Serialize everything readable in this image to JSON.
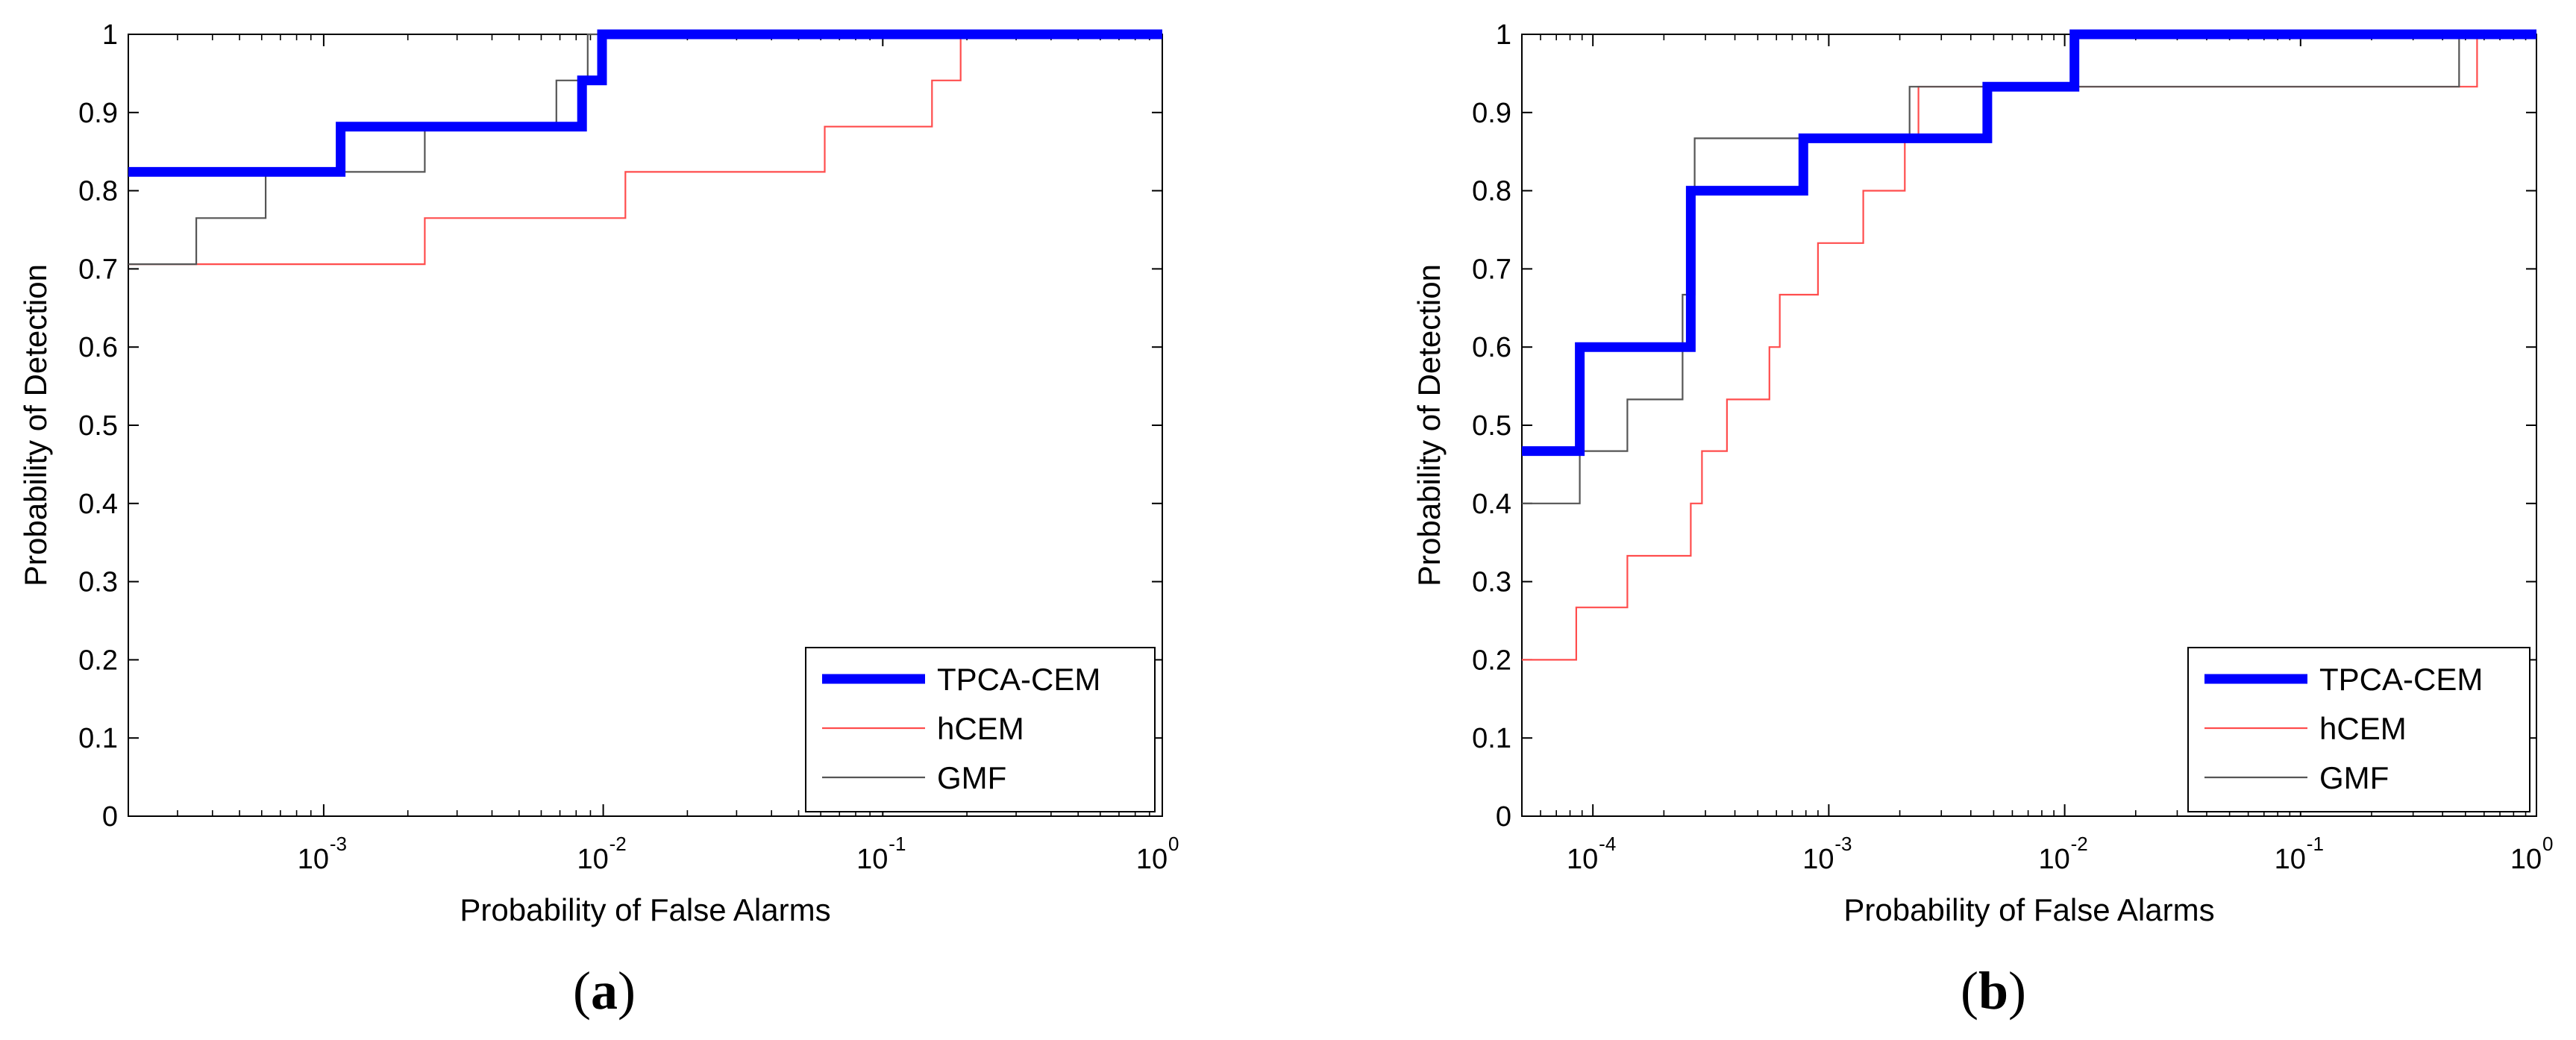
{
  "chart_data": [
    {
      "type": "line",
      "panel_label": "a",
      "xlabel": "Probability of False Alarms",
      "ylabel": "Probability of Detection",
      "xscale": "log",
      "xlim": [
        0.0002,
        1
      ],
      "ylim": [
        0,
        1
      ],
      "x_ticks": [
        0.001,
        0.01,
        0.1,
        1
      ],
      "x_tick_labels": [
        {
          "base": "10",
          "exp": "-3"
        },
        {
          "base": "10",
          "exp": "-2"
        },
        {
          "base": "10",
          "exp": "-1"
        },
        {
          "base": "10",
          "exp": "0"
        }
      ],
      "y_ticks": [
        0,
        0.1,
        0.2,
        0.3,
        0.4,
        0.5,
        0.6,
        0.7,
        0.8,
        0.9,
        1
      ],
      "y_tick_labels": [
        "0",
        "0.1",
        "0.2",
        "0.3",
        "0.4",
        "0.5",
        "0.6",
        "0.7",
        "0.8",
        "0.9",
        "1"
      ],
      "legend_position": "bottom-right",
      "series": [
        {
          "name": "TPCA-CEM",
          "color": "#0000ff",
          "style": "thick",
          "x": [
            0.0002,
            0.00115,
            0.0084,
            0.0099,
            1
          ],
          "y": [
            0.824,
            0.882,
            0.941,
            1.0,
            1.0
          ]
        },
        {
          "name": "hCEM",
          "color": "#ff4d4d",
          "style": "thin",
          "x": [
            0.0002,
            0.0023,
            0.012,
            0.062,
            0.15,
            0.19,
            1
          ],
          "y": [
            0.706,
            0.765,
            0.824,
            0.882,
            0.941,
            1.0,
            1.0
          ]
        },
        {
          "name": "GMF",
          "color": "#555555",
          "style": "thin",
          "x": [
            0.0002,
            0.00035,
            0.00062,
            0.0023,
            0.0068,
            0.0088,
            1
          ],
          "y": [
            0.706,
            0.765,
            0.824,
            0.882,
            0.941,
            1.0,
            1.0
          ]
        }
      ]
    },
    {
      "type": "line",
      "panel_label": "b",
      "xlabel": "Probability of False Alarms",
      "ylabel": "Probability of Detection",
      "xscale": "log",
      "xlim": [
        5e-05,
        1
      ],
      "ylim": [
        0,
        1
      ],
      "x_ticks": [
        0.0001,
        0.001,
        0.01,
        0.1,
        1
      ],
      "x_tick_labels": [
        {
          "base": "10",
          "exp": "-4"
        },
        {
          "base": "10",
          "exp": "-3"
        },
        {
          "base": "10",
          "exp": "-2"
        },
        {
          "base": "10",
          "exp": "-1"
        },
        {
          "base": "10",
          "exp": "0"
        }
      ],
      "y_ticks": [
        0,
        0.1,
        0.2,
        0.3,
        0.4,
        0.5,
        0.6,
        0.7,
        0.8,
        0.9,
        1
      ],
      "y_tick_labels": [
        "0",
        "0.1",
        "0.2",
        "0.3",
        "0.4",
        "0.5",
        "0.6",
        "0.7",
        "0.8",
        "0.9",
        "1"
      ],
      "legend_position": "bottom-right",
      "series": [
        {
          "name": "TPCA-CEM",
          "color": "#0000ff",
          "style": "thick",
          "x": [
            5e-05,
            8.8e-05,
            0.00026,
            0.00078,
            0.0047,
            0.011,
            1
          ],
          "y": [
            0.467,
            0.6,
            0.8,
            0.867,
            0.933,
            1.0,
            1.0
          ]
        },
        {
          "name": "hCEM",
          "color": "#ff4d4d",
          "style": "thin",
          "x": [
            5e-05,
            8.5e-05,
            0.00014,
            0.00026,
            0.00029,
            0.00037,
            0.00056,
            0.00062,
            0.0009,
            0.0014,
            0.0021,
            0.0024,
            0.035,
            0.51,
            0.56,
            1
          ],
          "y": [
            0.2,
            0.267,
            0.333,
            0.4,
            0.467,
            0.533,
            0.6,
            0.667,
            0.733,
            0.8,
            0.867,
            0.933,
            0.933,
            0.933,
            1.0,
            1.0
          ]
        },
        {
          "name": "GMF",
          "color": "#555555",
          "style": "thin",
          "x": [
            5e-05,
            8.8e-05,
            0.00014,
            0.00024,
            0.00027,
            0.0022,
            0.47,
            1
          ],
          "y": [
            0.4,
            0.467,
            0.533,
            0.667,
            0.867,
            0.933,
            1.0,
            1.0
          ]
        }
      ]
    }
  ]
}
